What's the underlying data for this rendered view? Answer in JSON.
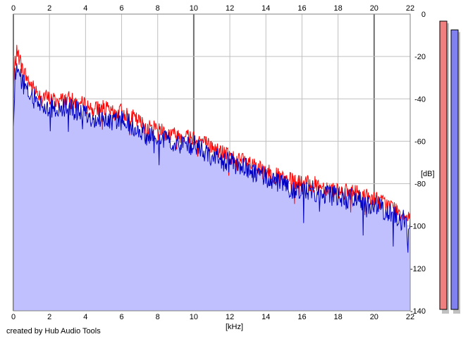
{
  "credit": "created by Hub Audio Tools",
  "colors": {
    "background": "#ffffff",
    "grid": "#c0c0c0",
    "grid_major": "#707070",
    "area_fill": "#c0c0ff",
    "left_channel": "#ff0000",
    "right_channel": "#0000c0",
    "left_meter_fill": "#f08080",
    "right_meter_fill": "#8080f0",
    "meter_shadow": "#c0c0c0"
  },
  "chart_data": {
    "type": "line",
    "title": "",
    "xlabel": "[kHz]",
    "ylabel": "[dB]",
    "xlim": [
      0,
      22
    ],
    "ylim": [
      -140,
      0
    ],
    "x_ticks": [
      "0",
      "2",
      "4",
      "6",
      "8",
      "10",
      "12",
      "14",
      "16",
      "18",
      "20",
      "22"
    ],
    "y_ticks": [
      "0",
      "-20",
      "-40",
      "-60",
      "-80",
      "-100",
      "-120",
      "-140"
    ],
    "major_x_lines": [
      0,
      10,
      20
    ],
    "grid": true,
    "legend": "none",
    "x": [
      0,
      0.1,
      0.2,
      0.3,
      0.5,
      0.75,
      1,
      1.5,
      2,
      2.5,
      3,
      3.5,
      4,
      4.5,
      5,
      5.5,
      6,
      6.5,
      7,
      7.5,
      8,
      8.5,
      9,
      9.5,
      10,
      10.5,
      11,
      11.5,
      12,
      12.5,
      13,
      13.5,
      14,
      14.5,
      15,
      15.5,
      16,
      16.5,
      17,
      17.5,
      18,
      18.5,
      19,
      19.5,
      20,
      20.5,
      21,
      21.5,
      22
    ],
    "series": [
      {
        "color_key": "left_channel",
        "values": [
          -35,
          -22,
          -18,
          -20,
          -26,
          -30,
          -34,
          -38,
          -40,
          -41,
          -40,
          -42,
          -43,
          -45,
          -44,
          -47,
          -46,
          -48,
          -51,
          -54,
          -53,
          -56,
          -57,
          -57,
          -58,
          -60,
          -63,
          -65,
          -67,
          -69,
          -70,
          -73,
          -74,
          -76,
          -78,
          -79,
          -80,
          -80,
          -81,
          -82,
          -83,
          -84,
          -84,
          -86,
          -87,
          -89,
          -91,
          -94,
          -95
        ]
      },
      {
        "color_key": "right_channel",
        "values": [
          -55,
          -28,
          -24,
          -27,
          -32,
          -36,
          -39,
          -42,
          -44,
          -45,
          -44,
          -46,
          -47,
          -49,
          -48,
          -51,
          -50,
          -52,
          -55,
          -58,
          -57,
          -60,
          -61,
          -61,
          -62,
          -64,
          -67,
          -69,
          -70,
          -72,
          -73,
          -76,
          -77,
          -79,
          -81,
          -82,
          -83,
          -83,
          -84,
          -85,
          -86,
          -87,
          -87,
          -89,
          -90,
          -92,
          -94,
          -97,
          -98
        ]
      }
    ],
    "meters": [
      {
        "color_key": "left_meter_fill",
        "level_db": -3
      },
      {
        "color_key": "right_meter_fill",
        "level_db": -7
      }
    ]
  }
}
